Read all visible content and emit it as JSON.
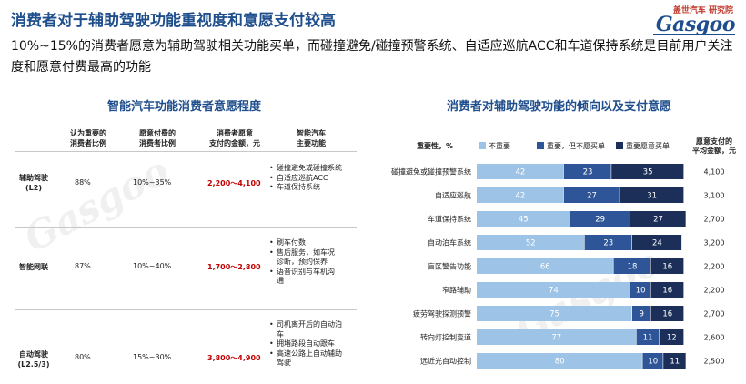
{
  "header": {
    "title": "消费者对于辅助驾驶功能重视度和意愿支付较高",
    "logo_top": "盖世汽车 研究院",
    "logo_main": "Gasgoo",
    "subtitle": "10%~15%的消费者愿意为辅助驾驶相关功能买单，而碰撞避免/碰撞预警系统、自适应巡航ACC和车道保持系统是目前用户关注度和愿意付费最高的功能"
  },
  "left_panel": {
    "title": "智能汽车功能消费者意愿程度",
    "columns": [
      "认为重要的\n消费者比例",
      "愿意付费的\n消费者比例",
      "消费者愿意\n支付的金额，元",
      "智能汽车\n主要功能"
    ],
    "rows": [
      {
        "label": "辅助驾驶\n(L2)",
        "important": "88%",
        "willing": "10%~35%",
        "pay": "2,200～4,100",
        "features": [
          "碰撞避免或碰撞系统",
          "自适应巡航ACC",
          "车道保持系统"
        ]
      },
      {
        "label": "智能网联",
        "important": "87%",
        "willing": "10%~40%",
        "pay": "1,700～2,800",
        "features": [
          "刷车付数",
          "售后服务，如车况诊断，预约保养",
          "语音识别与车机沟通"
        ]
      },
      {
        "label": "自动驾驶\n(L2.5/3)",
        "important": "80%",
        "willing": "15%~30%",
        "pay": "3,800～4,900",
        "features": [
          "司机离开后的自动泊车",
          "拥堵路段自动跟车",
          "高速公路上自动辅助驾驶"
        ]
      }
    ]
  },
  "right_panel": {
    "title": "消费者对辅助驾驶功能的倾向以及支付意愿"
  },
  "chart_data": {
    "type": "bar",
    "orientation": "horizontal",
    "stacked": true,
    "percent": true,
    "ylabel": "重要性，%",
    "value_column_label": "愿意支付的\n平均金额，元",
    "legend_position": "top",
    "categories": [
      "碰撞避免或碰撞预警系统",
      "自适应巡航",
      "车道保持系统",
      "自动泊车系统",
      "盲区警告功能",
      "窄路辅助",
      "疲劳驾驶探测预警",
      "转向灯控制变道",
      "远近光自动控制"
    ],
    "series": [
      {
        "name": "不重要",
        "color": "#9dc3e6",
        "values": [
          42,
          42,
          45,
          52,
          66,
          74,
          75,
          77,
          80
        ]
      },
      {
        "name": "重要，但不愿买单",
        "color": "#2e5597",
        "values": [
          23,
          27,
          29,
          23,
          18,
          10,
          9,
          11,
          10
        ]
      },
      {
        "name": "重要愿意买单",
        "color": "#1b2f58",
        "values": [
          35,
          31,
          27,
          24,
          16,
          16,
          16,
          12,
          11
        ]
      }
    ],
    "avg_pay": [
      "4,100",
      "3,100",
      "2,700",
      "3,200",
      "2,200",
      "2,200",
      "2,700",
      "2,600",
      "2,500"
    ],
    "xlim": [
      0,
      100
    ]
  }
}
